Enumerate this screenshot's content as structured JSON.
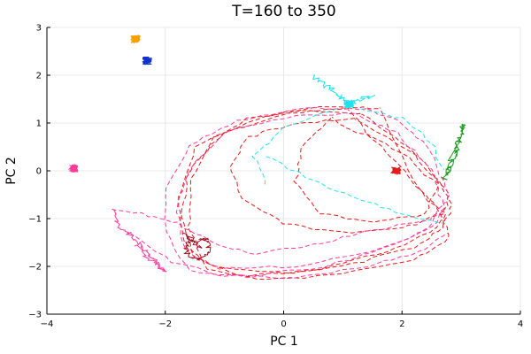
{
  "chart_data": {
    "type": "line",
    "title": "T=160 to 350",
    "xlabel": "PC 1",
    "ylabel": "PC 2",
    "xlim": [
      -4,
      4
    ],
    "ylim": [
      -3,
      3
    ],
    "xticks": [
      "−4",
      "−2",
      "0",
      "2",
      "4"
    ],
    "yticks": [
      "−3",
      "−2",
      "−1",
      "0",
      "1",
      "2",
      "3"
    ],
    "grid": true,
    "legend": "none",
    "colors": {
      "red": "#e41a1c",
      "magenta": "#ff3a9a",
      "cyan": "#1ee3ef",
      "green": "#1a9a1a",
      "orange": "#f5a000",
      "blue": "#1030d0",
      "darkred": "#a01020"
    },
    "clusters": [
      {
        "color": "orange",
        "x": -2.5,
        "y": 2.75
      },
      {
        "color": "blue",
        "x": -2.3,
        "y": 2.3
      },
      {
        "color": "magenta",
        "x": -3.55,
        "y": 0.05
      },
      {
        "color": "cyan",
        "x": 1.1,
        "y": 1.4
      },
      {
        "color": "red",
        "x": 1.9,
        "y": 0.0
      }
    ],
    "series": [
      {
        "color": "green",
        "dash": false,
        "points": [
          [
            2.7,
            -0.2
          ],
          [
            2.8,
            0.1
          ],
          [
            2.9,
            0.4
          ],
          [
            2.95,
            0.6
          ],
          [
            3.0,
            0.8
          ],
          [
            3.05,
            1.0
          ],
          [
            2.85,
            0.3
          ],
          [
            2.75,
            -0.1
          ]
        ]
      },
      {
        "color": "magenta",
        "dash": false,
        "points": [
          [
            -2.9,
            -0.8
          ],
          [
            -2.8,
            -1.1
          ],
          [
            -2.6,
            -1.35
          ],
          [
            -2.4,
            -1.6
          ],
          [
            -2.2,
            -1.85
          ],
          [
            -2.0,
            -2.1
          ],
          [
            -2.2,
            -1.9
          ],
          [
            -2.5,
            -1.55
          ]
        ]
      },
      {
        "color": "cyan",
        "dash": false,
        "points": [
          [
            0.5,
            2.0
          ],
          [
            0.7,
            1.8
          ],
          [
            0.9,
            1.6
          ],
          [
            1.1,
            1.4
          ],
          [
            1.3,
            1.5
          ],
          [
            1.5,
            1.55
          ]
        ]
      },
      {
        "color": "red",
        "dash": true,
        "points": [
          [
            1.3,
            1.2
          ],
          [
            0.5,
            1.25
          ],
          [
            -0.6,
            1.1
          ],
          [
            -1.5,
            0.5
          ],
          [
            -1.8,
            -0.6
          ],
          [
            -1.7,
            -1.5
          ],
          [
            -1.2,
            -2.0
          ],
          [
            0.0,
            -2.15
          ],
          [
            1.2,
            -1.95
          ],
          [
            2.2,
            -1.6
          ],
          [
            2.7,
            -1.2
          ],
          [
            2.85,
            -0.7
          ],
          [
            2.6,
            -0.2
          ],
          [
            2.0,
            0.6
          ],
          [
            1.3,
            1.2
          ]
        ]
      },
      {
        "color": "red",
        "dash": true,
        "points": [
          [
            1.1,
            1.3
          ],
          [
            0.0,
            1.2
          ],
          [
            -1.0,
            0.8
          ],
          [
            -1.6,
            0.0
          ],
          [
            -1.75,
            -1.0
          ],
          [
            -1.5,
            -1.8
          ],
          [
            -0.8,
            -2.2
          ],
          [
            0.4,
            -2.1
          ],
          [
            1.6,
            -1.75
          ],
          [
            2.5,
            -1.3
          ],
          [
            2.75,
            -0.9
          ],
          [
            2.3,
            -0.4
          ],
          [
            1.9,
            0.2
          ],
          [
            1.4,
            0.8
          ],
          [
            1.1,
            1.3
          ]
        ]
      },
      {
        "color": "red",
        "dash": true,
        "points": [
          [
            1.2,
            1.1
          ],
          [
            0.2,
            1.0
          ],
          [
            -0.6,
            0.7
          ],
          [
            -0.9,
            0.1
          ],
          [
            -0.7,
            -0.6
          ],
          [
            0.0,
            -1.1
          ],
          [
            1.0,
            -1.3
          ],
          [
            2.0,
            -1.2
          ],
          [
            2.7,
            -0.9
          ],
          [
            2.8,
            -0.5
          ],
          [
            2.3,
            0.3
          ],
          [
            1.2,
            1.1
          ]
        ]
      },
      {
        "color": "red",
        "dash": true,
        "points": [
          [
            1.6,
            1.3
          ],
          [
            0.8,
            1.35
          ],
          [
            -0.3,
            1.15
          ],
          [
            -1.2,
            0.7
          ],
          [
            -1.55,
            -0.2
          ],
          [
            -1.6,
            -1.2
          ],
          [
            -1.3,
            -2.05
          ],
          [
            -0.3,
            -2.3
          ],
          [
            1.0,
            -2.15
          ],
          [
            2.2,
            -1.85
          ],
          [
            2.8,
            -1.4
          ],
          [
            2.7,
            -1.0
          ],
          [
            2.2,
            -0.2
          ],
          [
            1.6,
            1.3
          ]
        ]
      },
      {
        "color": "red",
        "dash": true,
        "points": [
          [
            0.8,
            1.1
          ],
          [
            0.3,
            0.5
          ],
          [
            0.2,
            -0.2
          ],
          [
            0.6,
            -0.9
          ],
          [
            1.5,
            -1.1
          ],
          [
            2.4,
            -0.9
          ],
          [
            2.6,
            -0.3
          ],
          [
            2.0,
            0.4
          ],
          [
            1.1,
            0.9
          ],
          [
            0.8,
            1.1
          ]
        ]
      },
      {
        "color": "magenta",
        "dash": true,
        "points": [
          [
            1.4,
            1.3
          ],
          [
            0.4,
            1.3
          ],
          [
            -0.8,
            1.05
          ],
          [
            -1.6,
            0.5
          ],
          [
            -2.0,
            -0.4
          ],
          [
            -2.0,
            -1.3
          ],
          [
            -1.6,
            -2.1
          ],
          [
            -0.6,
            -2.2
          ],
          [
            0.7,
            -2.0
          ],
          [
            1.9,
            -1.55
          ],
          [
            2.6,
            -1.1
          ],
          [
            2.8,
            -0.5
          ],
          [
            2.5,
            0.4
          ],
          [
            2.0,
            1.0
          ],
          [
            1.4,
            1.3
          ]
        ]
      },
      {
        "color": "magenta",
        "dash": true,
        "points": [
          [
            1.2,
            1.2
          ],
          [
            0.2,
            1.15
          ],
          [
            -0.9,
            0.85
          ],
          [
            -1.5,
            0.2
          ],
          [
            -1.8,
            -0.7
          ],
          [
            -1.7,
            -1.6
          ],
          [
            -1.1,
            -2.05
          ],
          [
            0.2,
            -2.0
          ],
          [
            1.5,
            -1.7
          ],
          [
            2.4,
            -1.25
          ],
          [
            2.7,
            -0.7
          ],
          [
            2.5,
            0.0
          ],
          [
            1.9,
            0.8
          ],
          [
            1.2,
            1.2
          ]
        ]
      },
      {
        "color": "magenta",
        "dash": true,
        "points": [
          [
            -2.9,
            -0.8
          ],
          [
            -2.4,
            -0.9
          ],
          [
            -1.8,
            -1.1
          ],
          [
            -1.2,
            -1.5
          ],
          [
            -0.5,
            -1.75
          ],
          [
            0.5,
            -1.55
          ],
          [
            1.5,
            -1.25
          ],
          [
            2.4,
            -1.05
          ],
          [
            2.75,
            -0.8
          ]
        ]
      },
      {
        "color": "magenta",
        "dash": true,
        "points": [
          [
            -2.6,
            -1.3
          ],
          [
            -1.9,
            -1.9
          ],
          [
            -1.0,
            -2.2
          ],
          [
            0.2,
            -2.25
          ],
          [
            1.4,
            -2.0
          ],
          [
            2.3,
            -1.7
          ],
          [
            2.75,
            -1.3
          ]
        ]
      },
      {
        "color": "cyan",
        "dash": true,
        "points": [
          [
            1.3,
            1.3
          ],
          [
            2.0,
            1.1
          ],
          [
            2.5,
            0.6
          ],
          [
            2.7,
            0.0
          ]
        ]
      },
      {
        "color": "cyan",
        "dash": true,
        "points": [
          [
            -0.3,
            0.3
          ],
          [
            0.5,
            -0.2
          ],
          [
            1.3,
            -0.6
          ],
          [
            2.0,
            -0.9
          ],
          [
            2.7,
            -1.1
          ]
        ]
      },
      {
        "color": "cyan",
        "dash": true,
        "points": [
          [
            0.9,
            1.3
          ],
          [
            0.0,
            0.9
          ],
          [
            -0.5,
            0.3
          ],
          [
            -0.3,
            -0.3
          ]
        ]
      },
      {
        "color": "darkred",
        "dash": false,
        "points": [
          [
            -1.7,
            -1.3
          ],
          [
            -1.5,
            -1.5
          ],
          [
            -1.3,
            -1.4
          ],
          [
            -1.25,
            -1.7
          ],
          [
            -1.45,
            -1.9
          ],
          [
            -1.65,
            -1.7
          ],
          [
            -1.6,
            -1.45
          ],
          [
            -1.4,
            -1.6
          ]
        ]
      }
    ]
  }
}
